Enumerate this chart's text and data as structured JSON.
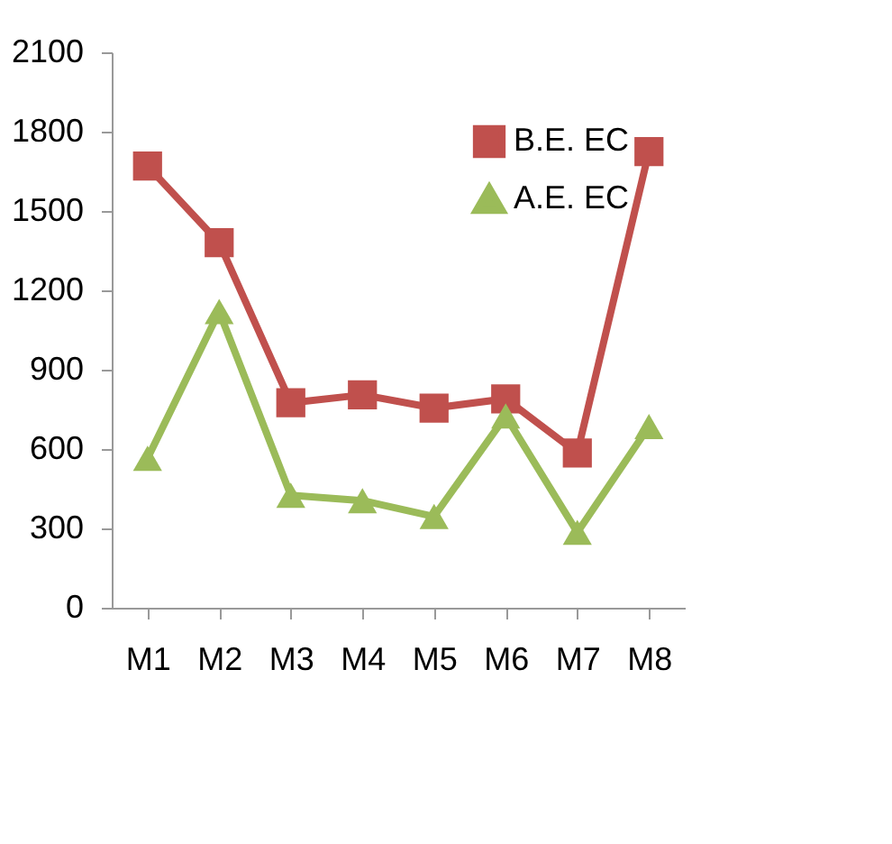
{
  "chart_data": {
    "type": "line",
    "categories": [
      "M1",
      "M2",
      "M3",
      "M4",
      "M5",
      "M6",
      "M7",
      "M8"
    ],
    "series": [
      {
        "name": "B.E. EC",
        "color": "#c0504d",
        "marker": "square",
        "values": [
          1670,
          1380,
          775,
          805,
          755,
          790,
          585,
          1725
        ]
      },
      {
        "name": "A.E. EC",
        "color": "#9bbb59",
        "marker": "triangle",
        "values": [
          565,
          1120,
          425,
          405,
          345,
          725,
          285,
          685
        ]
      }
    ],
    "ylim": [
      0,
      2100
    ],
    "yticks": [
      0,
      300,
      600,
      900,
      1200,
      1500,
      1800,
      2100
    ],
    "grid": false,
    "legend": "top right",
    "line_style": "solid"
  }
}
